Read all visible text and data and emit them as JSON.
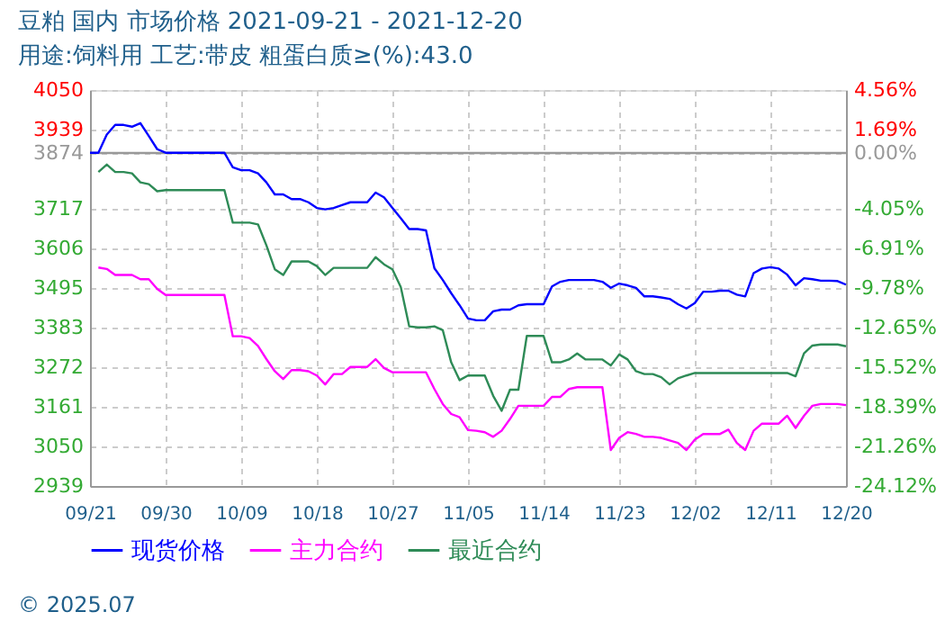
{
  "chart_data": {
    "type": "line",
    "title": "豆粕 国内 市场价格 2021-09-21 - 2021-12-20",
    "subtitle": "用途:饲料用 工艺:带皮 粗蛋白质≥(%):43.0",
    "annotations": [
      "© 2025.07"
    ],
    "x": [
      "2021-09-21",
      "2021-09-22",
      "2021-09-23",
      "2021-09-24",
      "2021-09-25",
      "2021-09-26",
      "2021-09-27",
      "2021-09-28",
      "2021-09-29",
      "2021-09-30",
      "2021-10-01",
      "2021-10-02",
      "2021-10-03",
      "2021-10-04",
      "2021-10-05",
      "2021-10-06",
      "2021-10-07",
      "2021-10-08",
      "2021-10-09",
      "2021-10-10",
      "2021-10-11",
      "2021-10-12",
      "2021-10-13",
      "2021-10-14",
      "2021-10-15",
      "2021-10-16",
      "2021-10-17",
      "2021-10-18",
      "2021-10-19",
      "2021-10-20",
      "2021-10-21",
      "2021-10-22",
      "2021-10-23",
      "2021-10-24",
      "2021-10-25",
      "2021-10-26",
      "2021-10-27",
      "2021-10-28",
      "2021-10-29",
      "2021-10-30",
      "2021-10-31",
      "2021-11-01",
      "2021-11-02",
      "2021-11-03",
      "2021-11-04",
      "2021-11-05",
      "2021-11-06",
      "2021-11-07",
      "2021-11-08",
      "2021-11-09",
      "2021-11-10",
      "2021-11-11",
      "2021-11-12",
      "2021-11-13",
      "2021-11-14",
      "2021-11-15",
      "2021-11-16",
      "2021-11-17",
      "2021-11-18",
      "2021-11-19",
      "2021-11-20",
      "2021-11-21",
      "2021-11-22",
      "2021-11-23",
      "2021-11-24",
      "2021-11-25",
      "2021-11-26",
      "2021-11-27",
      "2021-11-28",
      "2021-11-29",
      "2021-11-30",
      "2021-12-01",
      "2021-12-02",
      "2021-12-03",
      "2021-12-04",
      "2021-12-05",
      "2021-12-06",
      "2021-12-07",
      "2021-12-08",
      "2021-12-09",
      "2021-12-10",
      "2021-12-11",
      "2021-12-12",
      "2021-12-13",
      "2021-12-14",
      "2021-12-15",
      "2021-12-16",
      "2021-12-17",
      "2021-12-18",
      "2021-12-19",
      "2021-12-20"
    ],
    "series": [
      {
        "name": "现货价格",
        "color": "#0000ff",
        "values": [
          3874,
          3874,
          3925,
          3952,
          3952,
          3947,
          3957,
          3921,
          3884,
          3874,
          3874,
          3874,
          3874,
          3874,
          3874,
          3874,
          3874,
          3833,
          3825,
          3825,
          3816,
          3791,
          3757,
          3757,
          3744,
          3744,
          3735,
          3719,
          3715,
          3719,
          3727,
          3735,
          3735,
          3735,
          3762,
          3749,
          3719,
          3690,
          3660,
          3660,
          3656,
          3550,
          3517,
          3480,
          3446,
          3409,
          3404,
          3404,
          3429,
          3434,
          3434,
          3446,
          3449,
          3449,
          3449,
          3499,
          3512,
          3517,
          3517,
          3517,
          3517,
          3512,
          3495,
          3507,
          3502,
          3495,
          3471,
          3471,
          3468,
          3464,
          3449,
          3437,
          3452,
          3484,
          3484,
          3487,
          3487,
          3476,
          3471,
          3536,
          3549,
          3553,
          3549,
          3532,
          3502,
          3522,
          3519,
          3515,
          3515,
          3514,
          3504
        ]
      },
      {
        "name": "主力合约",
        "color": "#ff00ff",
        "values": [
          null,
          3552,
          3548,
          3531,
          3531,
          3531,
          3519,
          3519,
          3492,
          3475,
          3475,
          3475,
          3475,
          3475,
          3475,
          3475,
          3475,
          3359,
          3359,
          3354,
          3332,
          3295,
          3261,
          3239,
          3264,
          3264,
          3261,
          3249,
          3224,
          3253,
          3253,
          3273,
          3273,
          3273,
          3295,
          3270,
          3258,
          3258,
          3258,
          3258,
          3258,
          3211,
          3169,
          3141,
          3132,
          3096,
          3094,
          3090,
          3077,
          3094,
          3127,
          3164,
          3164,
          3164,
          3164,
          3189,
          3189,
          3211,
          3216,
          3216,
          3216,
          3216,
          3040,
          3074,
          3090,
          3085,
          3077,
          3077,
          3074,
          3067,
          3060,
          3040,
          3069,
          3085,
          3085,
          3085,
          3097,
          3060,
          3040,
          3094,
          3114,
          3114,
          3114,
          3136,
          3102,
          3136,
          3164,
          3169,
          3169,
          3169,
          3166
        ]
      },
      {
        "name": "最近合约",
        "color": "#2e8b57",
        "values": [
          null,
          3820,
          3841,
          3820,
          3820,
          3816,
          3791,
          3786,
          3766,
          3769,
          3769,
          3769,
          3769,
          3769,
          3769,
          3769,
          3769,
          3678,
          3678,
          3678,
          3673,
          3614,
          3547,
          3531,
          3569,
          3569,
          3569,
          3556,
          3531,
          3551,
          3551,
          3551,
          3551,
          3551,
          3581,
          3561,
          3547,
          3497,
          3387,
          3384,
          3384,
          3387,
          3376,
          3286,
          3236,
          3249,
          3249,
          3249,
          3192,
          3150,
          3209,
          3209,
          3360,
          3360,
          3360,
          3286,
          3286,
          3294,
          3311,
          3294,
          3294,
          3294,
          3277,
          3308,
          3294,
          3261,
          3253,
          3253,
          3244,
          3224,
          3241,
          3249,
          3256,
          3256,
          3256,
          3256,
          3256,
          3256,
          3256,
          3256,
          3256,
          3256,
          3256,
          3256,
          3247,
          3311,
          3333,
          3336,
          3336,
          3336,
          3331
        ]
      }
    ],
    "xlim": [
      "2021-09-21",
      "2021-12-20"
    ],
    "xticks": [
      {
        "value": "2021-09-21",
        "label": "09/21"
      },
      {
        "value": "2021-09-30",
        "label": "09/30"
      },
      {
        "value": "2021-10-09",
        "label": "10/09"
      },
      {
        "value": "2021-10-18",
        "label": "10/18"
      },
      {
        "value": "2021-10-27",
        "label": "10/27"
      },
      {
        "value": "2021-11-05",
        "label": "11/05"
      },
      {
        "value": "2021-11-14",
        "label": "11/14"
      },
      {
        "value": "2021-11-23",
        "label": "11/23"
      },
      {
        "value": "2021-12-02",
        "label": "12/02"
      },
      {
        "value": "2021-12-11",
        "label": "12/11"
      },
      {
        "value": "2021-12-20",
        "label": "12/20"
      }
    ],
    "ylim": [
      2939,
      4050
    ],
    "yticks": [
      2939,
      3050,
      3161,
      3272,
      3383,
      3495,
      3606,
      3717,
      3874,
      3939,
      4050
    ],
    "y2lim": [
      -24.12,
      4.56
    ],
    "y2ticks": [
      {
        "value": -24.12,
        "label": "-24.12%"
      },
      {
        "value": -21.26,
        "label": "-21.26%"
      },
      {
        "value": -18.39,
        "label": "-18.39%"
      },
      {
        "value": -15.52,
        "label": "-15.52%"
      },
      {
        "value": -12.65,
        "label": "-12.65%"
      },
      {
        "value": -9.78,
        "label": "-9.78%"
      },
      {
        "value": -6.91,
        "label": "-6.91%"
      },
      {
        "value": -4.05,
        "label": "-4.05%"
      },
      {
        "value": 0,
        "label": "0.00%"
      },
      {
        "value": 1.69,
        "label": "1.69%"
      },
      {
        "value": 4.56,
        "label": "4.56%"
      }
    ],
    "ref_lines": [
      {
        "axis": "y2",
        "value": 0,
        "color": "#999999"
      }
    ],
    "grid": true,
    "legend": "bottom",
    "line_style": "solid"
  }
}
